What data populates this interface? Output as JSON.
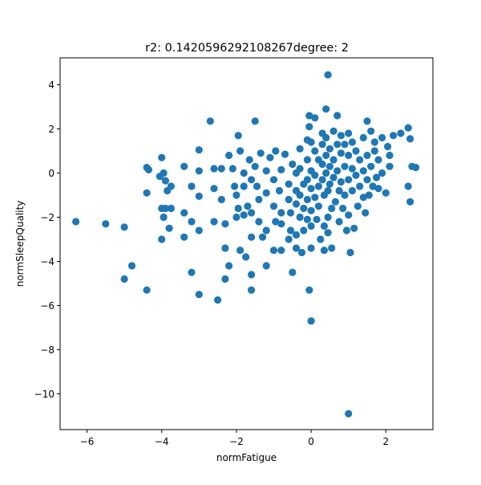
{
  "chart_data": {
    "type": "scatter",
    "title": "r2: 0.1420596292108267degree: 2",
    "xlabel": "normFatigue",
    "ylabel": "normSleepQuality",
    "xlim": [
      -6.72,
      3.26
    ],
    "ylim": [
      -11.62,
      5.22
    ],
    "xticks": [
      -6,
      -4,
      -2,
      0,
      2
    ],
    "xtick_labels": [
      "−6",
      "−4",
      "−2",
      "0",
      "2"
    ],
    "yticks": [
      4,
      2,
      0,
      -2,
      -4,
      -6,
      -8,
      -10
    ],
    "ytick_labels": [
      "4",
      "2",
      "0",
      "−2",
      "−4",
      "−6",
      "−8",
      "−10"
    ],
    "grid": false,
    "legend": "none",
    "series": [
      {
        "color": "#1f77b4",
        "points": [
          [
            -6.3,
            -2.2
          ],
          [
            -5.5,
            -2.3
          ],
          [
            -5.0,
            -2.45
          ],
          [
            -5.0,
            -4.8
          ],
          [
            -4.8,
            -4.2
          ],
          [
            -4.4,
            -5.3
          ],
          [
            -4.4,
            0.25
          ],
          [
            -4.35,
            0.15
          ],
          [
            -4.4,
            -0.9
          ],
          [
            -4.0,
            0.7
          ],
          [
            -4.05,
            -0.15
          ],
          [
            -3.95,
            0.0
          ],
          [
            -3.9,
            -0.35
          ],
          [
            -4.0,
            -1.6
          ],
          [
            -3.9,
            -1.6
          ],
          [
            -3.95,
            -2.0
          ],
          [
            -3.85,
            -0.8
          ],
          [
            -3.75,
            -0.6
          ],
          [
            -3.75,
            -1.6
          ],
          [
            -4.0,
            -3.0
          ],
          [
            -3.8,
            -2.5
          ],
          [
            -3.4,
            0.3
          ],
          [
            -3.4,
            -1.8
          ],
          [
            -3.4,
            -2.9
          ],
          [
            -3.2,
            -0.6
          ],
          [
            -3.2,
            -2.2
          ],
          [
            -3.2,
            -4.5
          ],
          [
            -3.0,
            1.05
          ],
          [
            -3.0,
            0.1
          ],
          [
            -3.0,
            -1.05
          ],
          [
            -3.0,
            -2.6
          ],
          [
            -3.0,
            -5.5
          ],
          [
            -2.7,
            2.35
          ],
          [
            -2.6,
            0.2
          ],
          [
            -2.6,
            -0.7
          ],
          [
            -2.6,
            -2.2
          ],
          [
            -2.5,
            -5.75
          ],
          [
            -2.4,
            0.2
          ],
          [
            -2.4,
            -1.2
          ],
          [
            -2.3,
            -2.3
          ],
          [
            -2.3,
            -3.4
          ],
          [
            -2.3,
            -4.8
          ],
          [
            -2.2,
            -4.2
          ],
          [
            -2.2,
            0.8
          ],
          [
            -2.1,
            0.2
          ],
          [
            -2.05,
            -0.6
          ],
          [
            -2.0,
            -1.0
          ],
          [
            -1.95,
            -1.6
          ],
          [
            -2.0,
            -2.0
          ],
          [
            -1.9,
            -3.5
          ],
          [
            -1.95,
            1.7
          ],
          [
            -1.9,
            1.0
          ],
          [
            -1.8,
            0.0
          ],
          [
            -1.8,
            -0.6
          ],
          [
            -1.8,
            -1.9
          ],
          [
            -1.75,
            -3.8
          ],
          [
            -1.65,
            0.6
          ],
          [
            -1.7,
            -1.5
          ],
          [
            -1.6,
            -0.3
          ],
          [
            -1.6,
            -1.8
          ],
          [
            -1.6,
            -2.9
          ],
          [
            -1.6,
            -4.6
          ],
          [
            -1.6,
            -5.3
          ],
          [
            -1.5,
            2.35
          ],
          [
            -1.5,
            0.3
          ],
          [
            -1.45,
            -0.6
          ],
          [
            -1.4,
            -1.2
          ],
          [
            -1.4,
            -2.2
          ],
          [
            -1.35,
            0.9
          ],
          [
            -1.3,
            -2.9
          ],
          [
            -1.2,
            0.1
          ],
          [
            -1.2,
            -0.9
          ],
          [
            -1.2,
            -2.6
          ],
          [
            -1.2,
            -4.2
          ],
          [
            -1.1,
            0.7
          ],
          [
            -1.0,
            -0.3
          ],
          [
            -1.0,
            -1.5
          ],
          [
            -0.95,
            -2.2
          ],
          [
            -1.0,
            -3.5
          ],
          [
            -0.95,
            1.0
          ],
          [
            -0.8,
            0.15
          ],
          [
            -0.85,
            -0.8
          ],
          [
            -0.8,
            -1.8
          ],
          [
            -0.8,
            -2.3
          ],
          [
            -0.8,
            -3.5
          ],
          [
            -0.7,
            0.85
          ],
          [
            -0.6,
            -0.5
          ],
          [
            -0.6,
            -1.2
          ],
          [
            -0.55,
            -1.8
          ],
          [
            -0.55,
            -2.6
          ],
          [
            -0.5,
            -4.5
          ],
          [
            -0.6,
            -3.0
          ],
          [
            -0.5,
            0.4
          ],
          [
            -0.4,
            0.0
          ],
          [
            -0.4,
            -0.8
          ],
          [
            -0.4,
            -1.4
          ],
          [
            -0.4,
            -2.8
          ],
          [
            -0.4,
            -3.4
          ],
          [
            -0.3,
            1.1
          ],
          [
            -0.3,
            0.2
          ],
          [
            -0.3,
            -1.0
          ],
          [
            -0.3,
            -2.0
          ],
          [
            -0.2,
            -0.5
          ],
          [
            -0.2,
            -1.6
          ],
          [
            -0.2,
            -2.6
          ],
          [
            -0.25,
            -3.6
          ],
          [
            -0.1,
            1.5
          ],
          [
            -0.1,
            0.6
          ],
          [
            -0.1,
            -0.3
          ],
          [
            -0.1,
            -1.2
          ],
          [
            -0.1,
            -2.1
          ],
          [
            -0.05,
            2.6
          ],
          [
            -0.05,
            2.1
          ],
          [
            0.0,
            1.4
          ],
          [
            0.0,
            0.1
          ],
          [
            0.0,
            -0.7
          ],
          [
            0.0,
            -1.7
          ],
          [
            0.0,
            -2.4
          ],
          [
            0.0,
            -3.4
          ],
          [
            -0.05,
            -5.3
          ],
          [
            0.0,
            -6.7
          ],
          [
            0.1,
            2.5
          ],
          [
            0.1,
            1.0
          ],
          [
            0.1,
            -0.1
          ],
          [
            0.1,
            -1.1
          ],
          [
            0.15,
            -2.1
          ],
          [
            0.2,
            0.6
          ],
          [
            0.2,
            -0.6
          ],
          [
            0.2,
            -1.5
          ],
          [
            0.25,
            -3.0
          ],
          [
            0.3,
            1.8
          ],
          [
            0.3,
            1.3
          ],
          [
            0.3,
            0.4
          ],
          [
            0.3,
            -0.3
          ],
          [
            0.35,
            -1.0
          ],
          [
            0.35,
            -2.4
          ],
          [
            0.35,
            -3.5
          ],
          [
            0.4,
            2.9
          ],
          [
            0.4,
            1.6
          ],
          [
            0.4,
            0.8
          ],
          [
            0.4,
            0.0
          ],
          [
            0.45,
            -0.8
          ],
          [
            0.45,
            -2.0
          ],
          [
            0.45,
            -2.7
          ],
          [
            0.5,
            1.1
          ],
          [
            0.5,
            0.3
          ],
          [
            0.5,
            -0.5
          ],
          [
            0.55,
            -1.6
          ],
          [
            0.55,
            -3.4
          ],
          [
            0.6,
            1.9
          ],
          [
            0.6,
            0.6
          ],
          [
            0.6,
            -0.2
          ],
          [
            0.65,
            -1.3
          ],
          [
            0.7,
            2.6
          ],
          [
            0.7,
            1.3
          ],
          [
            0.7,
            0.1
          ],
          [
            0.75,
            -0.8
          ],
          [
            0.75,
            -2.2
          ],
          [
            0.8,
            1.7
          ],
          [
            0.8,
            0.9
          ],
          [
            0.8,
            -0.4
          ],
          [
            0.85,
            -1.6
          ],
          [
            0.9,
            1.3
          ],
          [
            0.9,
            0.3
          ],
          [
            0.9,
            -1.0
          ],
          [
            0.95,
            -2.6
          ],
          [
            1.0,
            1.8
          ],
          [
            1.0,
            0.8
          ],
          [
            1.0,
            -0.3
          ],
          [
            1.0,
            -1.9
          ],
          [
            1.05,
            -3.6
          ],
          [
            1.1,
            1.4
          ],
          [
            1.1,
            0.2
          ],
          [
            1.1,
            -0.8
          ],
          [
            1.15,
            -2.5
          ],
          [
            1.2,
            1.0
          ],
          [
            1.2,
            -0.1
          ],
          [
            1.25,
            -1.5
          ],
          [
            1.3,
            0.6
          ],
          [
            1.3,
            -0.6
          ],
          [
            1.4,
            1.6
          ],
          [
            1.4,
            0.1
          ],
          [
            1.4,
            -1.1
          ],
          [
            1.45,
            -1.8
          ],
          [
            1.5,
            2.35
          ],
          [
            1.5,
            0.8
          ],
          [
            1.5,
            -0.3
          ],
          [
            1.55,
            -1.0
          ],
          [
            1.6,
            1.9
          ],
          [
            1.6,
            0.3
          ],
          [
            1.65,
            -0.6
          ],
          [
            1.7,
            1.4
          ],
          [
            1.7,
            1.0
          ],
          [
            1.75,
            -0.2
          ],
          [
            1.8,
            0.6
          ],
          [
            1.8,
            -0.7
          ],
          [
            1.9,
            1.6
          ],
          [
            1.9,
            0.0
          ],
          [
            2.0,
            -0.9
          ],
          [
            2.05,
            1.2
          ],
          [
            2.1,
            0.3
          ],
          [
            2.1,
            0.8
          ],
          [
            2.2,
            1.7
          ],
          [
            2.4,
            1.8
          ],
          [
            2.6,
            2.05
          ],
          [
            2.65,
            1.55
          ],
          [
            2.65,
            -1.3
          ],
          [
            2.6,
            -0.6
          ],
          [
            2.7,
            0.3
          ],
          [
            2.8,
            0.25
          ],
          [
            0.45,
            4.45
          ],
          [
            1.0,
            -10.9
          ]
        ]
      }
    ]
  }
}
